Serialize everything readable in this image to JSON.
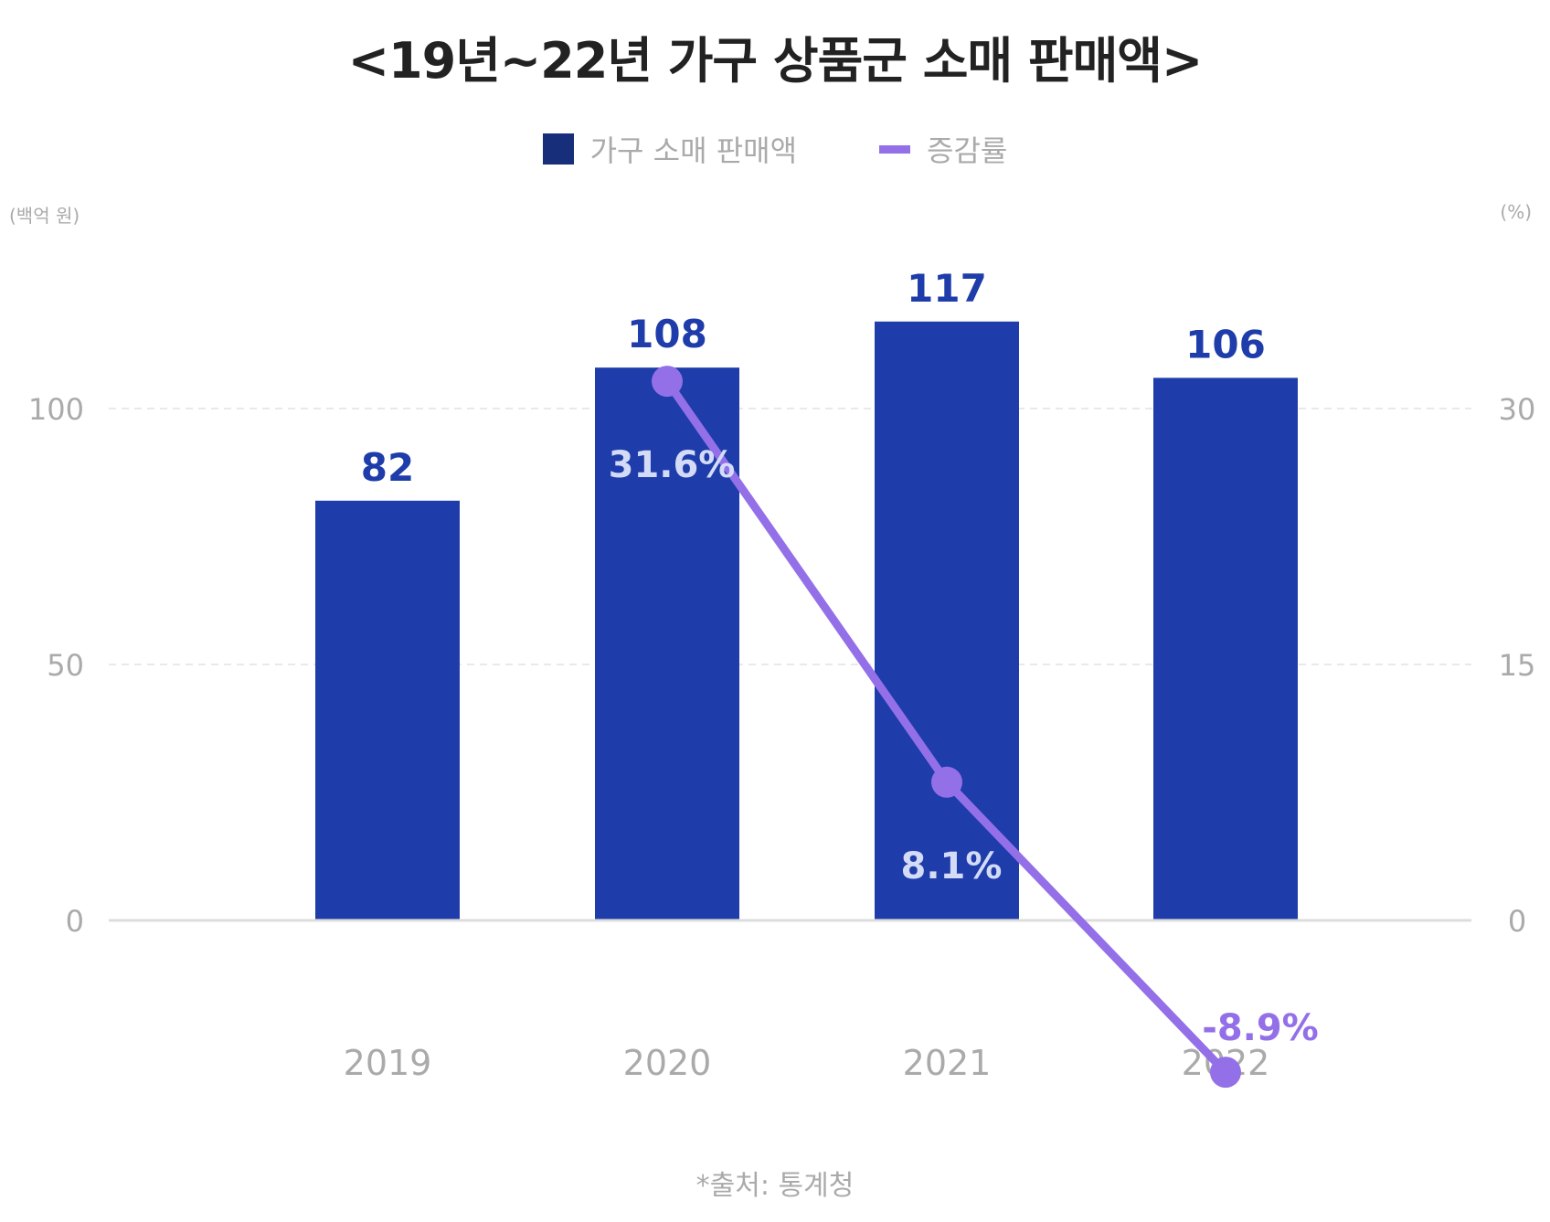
{
  "chart_data": {
    "type": "bar",
    "title": "<19년~22년 가구 상품군 소매 판매액>",
    "categories": [
      "2019",
      "2020",
      "2021",
      "2022"
    ],
    "series": [
      {
        "name": "가구 소매 판매액",
        "type": "bar",
        "axis": "left",
        "values": [
          82,
          108,
          117,
          106
        ],
        "labels": [
          "82",
          "108",
          "117",
          "106"
        ],
        "color": "#1e3caa",
        "legend_color": "#172e7a"
      },
      {
        "name": "증감률",
        "type": "line",
        "axis": "right",
        "values": [
          null,
          31.6,
          8.1,
          -8.9
        ],
        "labels": [
          "",
          "31.6%",
          "8.1%",
          "-8.9%"
        ],
        "color": "#9370e8"
      }
    ],
    "left_axis": {
      "unit": "(백억 원)",
      "ticks": [
        0,
        50,
        100
      ],
      "range": [
        0,
        100
      ]
    },
    "right_axis": {
      "unit": "(%)",
      "ticks": [
        0,
        15,
        30
      ],
      "range": [
        0,
        30
      ]
    },
    "grid": true,
    "legend_position": "top"
  },
  "source": "*출처: 통계청"
}
